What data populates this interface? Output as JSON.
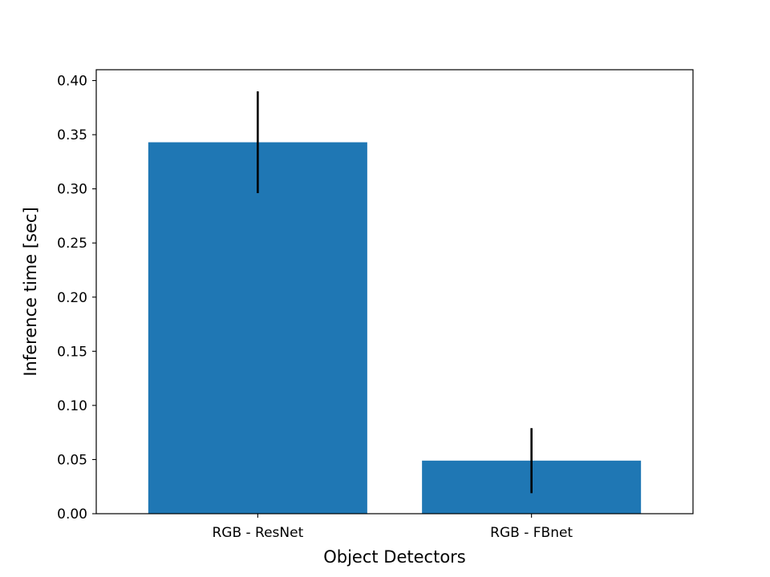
{
  "chart_data": {
    "type": "bar",
    "title": "",
    "xlabel": "Object Detectors",
    "ylabel": "Inference time [sec]",
    "categories": [
      "RGB - ResNet",
      "RGB - FBnet"
    ],
    "values": [
      0.343,
      0.049
    ],
    "errors": [
      0.047,
      0.03
    ],
    "ylim": [
      0,
      0.41
    ],
    "yticks": [
      0.0,
      0.05,
      0.1,
      0.15,
      0.2,
      0.25,
      0.3,
      0.35,
      0.4
    ],
    "ytick_labels": [
      "0.00",
      "0.05",
      "0.10",
      "0.15",
      "0.20",
      "0.25",
      "0.30",
      "0.35",
      "0.40"
    ],
    "grid": false,
    "legend": "none",
    "colors": {
      "bar": "#1f77b4",
      "error": "#000000",
      "axes": "#000000"
    }
  }
}
